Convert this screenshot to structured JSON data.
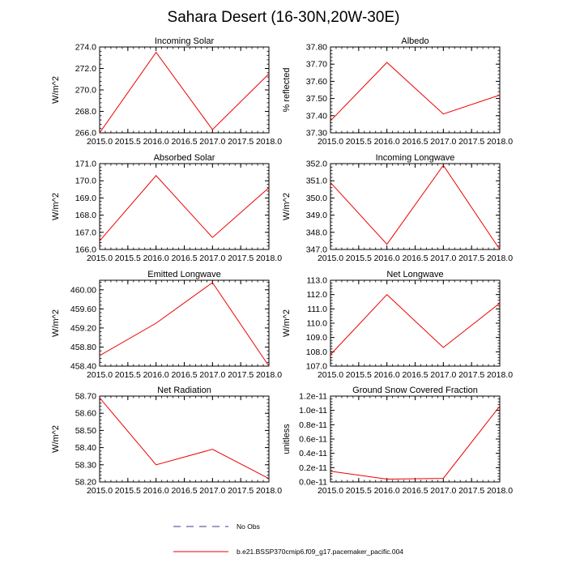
{
  "figure": {
    "title": "Sahara Desert (16-30N,20W-30E)",
    "series_color": "#ee0000",
    "axis_color": "#000000",
    "obs_color": "#3b3b8f"
  },
  "legend": {
    "obs_label": "No Obs",
    "model_label": "b.e21.BSSP370cmip6.f09_g17.pacemaker_pacific.004"
  },
  "chart_data": [
    {
      "type": "line",
      "title": "Incoming Solar",
      "xlabel": "",
      "ylabel": "W/m^2",
      "x": [
        2015.0,
        2016.0,
        2017.0,
        2018.0
      ],
      "series": [
        {
          "name": "b.e21.BSSP370cmip6.f09_g17.pacemaker_pacific.004",
          "values": [
            266.0,
            273.5,
            266.3,
            271.5
          ]
        }
      ],
      "xlim": [
        2015.0,
        2018.0
      ],
      "ylim": [
        266.0,
        274.0
      ],
      "xticks": [
        2015.0,
        2015.5,
        2016.0,
        2016.5,
        2017.0,
        2017.5,
        2018.0
      ],
      "xtick_labels": [
        "2015.0",
        "2015.5",
        "2016.0",
        "2016.5",
        "2017.0",
        "2017.5",
        "2018.0"
      ],
      "yticks": [
        266.0,
        268.0,
        270.0,
        272.0,
        274.0
      ],
      "ytick_labels": [
        "266.0",
        "268.0",
        "270.0",
        "272.0",
        "274.0"
      ]
    },
    {
      "type": "line",
      "title": "Albedo",
      "xlabel": "",
      "ylabel": "% reflected",
      "x": [
        2015.0,
        2016.0,
        2017.0,
        2018.0
      ],
      "series": [
        {
          "name": "b.e21.BSSP370cmip6.f09_g17.pacemaker_pacific.004",
          "values": [
            37.37,
            37.71,
            37.41,
            37.52
          ]
        }
      ],
      "xlim": [
        2015.0,
        2018.0
      ],
      "ylim": [
        37.3,
        37.8
      ],
      "xticks": [
        2015.0,
        2015.5,
        2016.0,
        2016.5,
        2017.0,
        2017.5,
        2018.0
      ],
      "xtick_labels": [
        "2015.0",
        "2015.5",
        "2016.0",
        "2016.5",
        "2017.0",
        "2017.5",
        "2018.0"
      ],
      "yticks": [
        37.3,
        37.4,
        37.5,
        37.6,
        37.7,
        37.8
      ],
      "ytick_labels": [
        "37.30",
        "37.40",
        "37.50",
        "37.60",
        "37.70",
        "37.80"
      ]
    },
    {
      "type": "line",
      "title": "Absorbed Solar",
      "xlabel": "",
      "ylabel": "W/m^2",
      "x": [
        2015.0,
        2016.0,
        2017.0,
        2018.0
      ],
      "series": [
        {
          "name": "b.e21.BSSP370cmip6.f09_g17.pacemaker_pacific.004",
          "values": [
            166.5,
            170.3,
            166.7,
            169.6
          ]
        }
      ],
      "xlim": [
        2015.0,
        2018.0
      ],
      "ylim": [
        166.0,
        171.0
      ],
      "xticks": [
        2015.0,
        2015.5,
        2016.0,
        2016.5,
        2017.0,
        2017.5,
        2018.0
      ],
      "xtick_labels": [
        "2015.0",
        "2015.5",
        "2016.0",
        "2016.5",
        "2017.0",
        "2017.5",
        "2018.0"
      ],
      "yticks": [
        166.0,
        167.0,
        168.0,
        169.0,
        170.0,
        171.0
      ],
      "ytick_labels": [
        "166.0",
        "167.0",
        "168.0",
        "169.0",
        "170.0",
        "171.0"
      ]
    },
    {
      "type": "line",
      "title": "Incoming Longwave",
      "xlabel": "",
      "ylabel": "W/m^2",
      "x": [
        2015.0,
        2016.0,
        2017.0,
        2018.0
      ],
      "series": [
        {
          "name": "b.e21.BSSP370cmip6.f09_g17.pacemaker_pacific.004",
          "values": [
            350.9,
            347.3,
            351.9,
            347.0
          ]
        }
      ],
      "xlim": [
        2015.0,
        2018.0
      ],
      "ylim": [
        347.0,
        352.0
      ],
      "xticks": [
        2015.0,
        2015.5,
        2016.0,
        2016.5,
        2017.0,
        2017.5,
        2018.0
      ],
      "xtick_labels": [
        "2015.0",
        "2015.5",
        "2016.0",
        "2016.5",
        "2017.0",
        "2017.5",
        "2018.0"
      ],
      "yticks": [
        347.0,
        348.0,
        349.0,
        350.0,
        351.0,
        352.0
      ],
      "ytick_labels": [
        "347.0",
        "348.0",
        "349.0",
        "350.0",
        "351.0",
        "352.0"
      ]
    },
    {
      "type": "line",
      "title": "Emitted Longwave",
      "xlabel": "",
      "ylabel": "W/m^2",
      "x": [
        2015.0,
        2016.0,
        2017.0,
        2018.0
      ],
      "series": [
        {
          "name": "b.e21.BSSP370cmip6.f09_g17.pacemaker_pacific.004",
          "values": [
            458.62,
            459.3,
            460.15,
            458.4
          ]
        }
      ],
      "xlim": [
        2015.0,
        2018.0
      ],
      "ylim": [
        458.4,
        460.2
      ],
      "xticks": [
        2015.0,
        2015.5,
        2016.0,
        2016.5,
        2017.0,
        2017.5,
        2018.0
      ],
      "xtick_labels": [
        "2015.0",
        "2015.5",
        "2016.0",
        "2016.5",
        "2017.0",
        "2017.5",
        "2018.0"
      ],
      "yticks": [
        458.4,
        458.8,
        459.2,
        459.6,
        460.0
      ],
      "ytick_labels": [
        "458.40",
        "458.80",
        "459.20",
        "459.60",
        "460.00"
      ]
    },
    {
      "type": "line",
      "title": "Net Longwave",
      "xlabel": "",
      "ylabel": "W/m^2",
      "x": [
        2015.0,
        2016.0,
        2017.0,
        2018.0
      ],
      "series": [
        {
          "name": "b.e21.BSSP370cmip6.f09_g17.pacemaker_pacific.004",
          "values": [
            107.8,
            112.0,
            108.3,
            111.4
          ]
        }
      ],
      "xlim": [
        2015.0,
        2018.0
      ],
      "ylim": [
        107.0,
        113.0
      ],
      "xticks": [
        2015.0,
        2015.5,
        2016.0,
        2016.5,
        2017.0,
        2017.5,
        2018.0
      ],
      "xtick_labels": [
        "2015.0",
        "2015.5",
        "2016.0",
        "2016.5",
        "2017.0",
        "2017.5",
        "2018.0"
      ],
      "yticks": [
        107.0,
        108.0,
        109.0,
        110.0,
        111.0,
        112.0,
        113.0
      ],
      "ytick_labels": [
        "107.0",
        "108.0",
        "109.0",
        "110.0",
        "111.0",
        "112.0",
        "113.0"
      ]
    },
    {
      "type": "line",
      "title": "Net Radiation",
      "xlabel": "",
      "ylabel": "W/m^2",
      "x": [
        2015.0,
        2016.0,
        2017.0,
        2018.0
      ],
      "series": [
        {
          "name": "b.e21.BSSP370cmip6.f09_g17.pacemaker_pacific.004",
          "values": [
            58.69,
            58.3,
            58.39,
            58.22
          ]
        }
      ],
      "xlim": [
        2015.0,
        2018.0
      ],
      "ylim": [
        58.2,
        58.7
      ],
      "xticks": [
        2015.0,
        2015.5,
        2016.0,
        2016.5,
        2017.0,
        2017.5,
        2018.0
      ],
      "xtick_labels": [
        "2015.0",
        "2015.5",
        "2016.0",
        "2016.5",
        "2017.0",
        "2017.5",
        "2018.0"
      ],
      "yticks": [
        58.2,
        58.3,
        58.4,
        58.5,
        58.6,
        58.7
      ],
      "ytick_labels": [
        "58.20",
        "58.30",
        "58.40",
        "58.50",
        "58.60",
        "58.70"
      ]
    },
    {
      "type": "line",
      "title": "Ground Snow Covered Fraction",
      "xlabel": "",
      "ylabel": "unitless",
      "x": [
        2015.0,
        2016.0,
        2017.0,
        2018.0
      ],
      "series": [
        {
          "name": "b.e21.BSSP370cmip6.f09_g17.pacemaker_pacific.004",
          "values": [
            1.5e-12,
            4e-13,
            5e-13,
            1.06e-11
          ]
        }
      ],
      "xlim": [
        2015.0,
        2018.0
      ],
      "ylim": [
        0,
        1.2e-11
      ],
      "xticks": [
        2015.0,
        2015.5,
        2016.0,
        2016.5,
        2017.0,
        2017.5,
        2018.0
      ],
      "xtick_labels": [
        "2015.0",
        "2015.5",
        "2016.0",
        "2016.5",
        "2017.0",
        "2017.5",
        "2018.0"
      ],
      "yticks": [
        0,
        2e-12,
        4e-12,
        6e-12,
        8e-12,
        1e-11,
        1.2e-11
      ],
      "ytick_labels": [
        "0.0e-11",
        "0.2e-11",
        "0.4e-11",
        "0.6e-11",
        "0.8e-11",
        "1.0e-11",
        "1.2e-11"
      ]
    }
  ]
}
